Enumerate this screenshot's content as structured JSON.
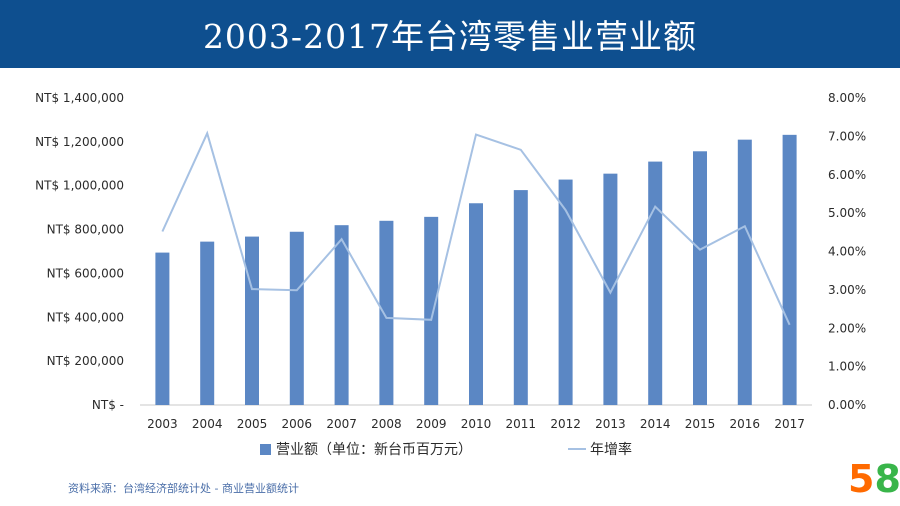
{
  "header": {
    "title": "2003-2017年台湾零售业营业额"
  },
  "chart_data": {
    "type": "bar+line",
    "categories": [
      "2003",
      "2004",
      "2005",
      "2006",
      "2007",
      "2008",
      "2009",
      "2010",
      "2011",
      "2012",
      "2013",
      "2014",
      "2015",
      "2016",
      "2017"
    ],
    "series": [
      {
        "name": "营业额（单位：新台币百万元）",
        "type": "bar",
        "axis": "left",
        "values": [
          695000,
          745000,
          768000,
          790000,
          820000,
          840000,
          858000,
          920000,
          980000,
          1028000,
          1055000,
          1110000,
          1157000,
          1210000,
          1232000
        ]
      },
      {
        "name": "年增率",
        "type": "line",
        "axis": "right",
        "values": [
          0.0452,
          0.0708,
          0.0302,
          0.0299,
          0.0432,
          0.0227,
          0.0222,
          0.0705,
          0.0665,
          0.0508,
          0.0293,
          0.0517,
          0.0405,
          0.0466,
          0.0209
        ]
      }
    ],
    "y_left": {
      "ylim": [
        0,
        1400000
      ],
      "ticks": [
        "NT$ -",
        "NT$ 200,000",
        "NT$ 400,000",
        "NT$ 600,000",
        "NT$ 800,000",
        "NT$ 1,000,000",
        "NT$ 1,200,000",
        "NT$ 1,400,000"
      ]
    },
    "y_right": {
      "ylim": [
        0,
        0.08
      ],
      "ticks": [
        "0.00%",
        "1.00%",
        "2.00%",
        "3.00%",
        "4.00%",
        "5.00%",
        "6.00%",
        "7.00%",
        "8.00%"
      ]
    },
    "grid": false,
    "legend_position": "bottom",
    "colors": {
      "bar": "#5b87c4",
      "line": "#a6c1e3",
      "axis": "#c9c9c9",
      "text": "#2b2b2b"
    }
  },
  "footer": {
    "source": "资料来源：台湾经济部统计处 - 商业营业额统计"
  },
  "logo": {
    "digit1": "5",
    "digit2": "8"
  }
}
